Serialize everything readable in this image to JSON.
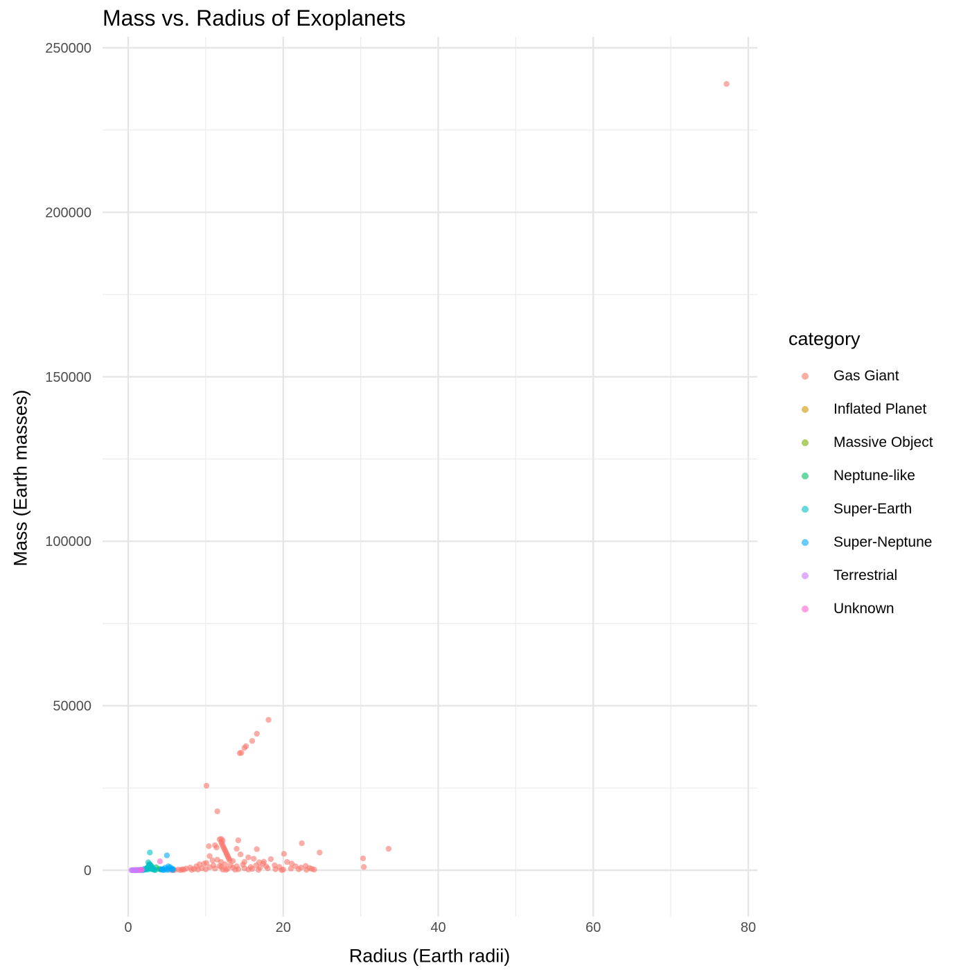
{
  "chart_data": {
    "type": "scatter",
    "title": "Mass vs. Radius of Exoplanets",
    "xlabel": "Radius (Earth radii)",
    "ylabel": "Mass (Earth masses)",
    "xlim": [
      -3.5,
      81
    ],
    "ylim": [
      -12000,
      250000
    ],
    "xticks": [
      0,
      20,
      40,
      60,
      80
    ],
    "yticks": [
      0,
      50000,
      100000,
      150000,
      200000,
      250000
    ],
    "grid": true,
    "legend_title": "category",
    "legend_position": "right",
    "categories": [
      {
        "name": "Gas Giant",
        "color": "#F8766D"
      },
      {
        "name": "Inflated Planet",
        "color": "#CD9600"
      },
      {
        "name": "Massive Object",
        "color": "#7CAE00"
      },
      {
        "name": "Neptune-like",
        "color": "#00BE67"
      },
      {
        "name": "Super-Earth",
        "color": "#00BFC4"
      },
      {
        "name": "Super-Neptune",
        "color": "#00A9FF"
      },
      {
        "name": "Terrestrial",
        "color": "#C77CFF"
      },
      {
        "name": "Unknown",
        "color": "#FF61CC"
      }
    ],
    "series": [
      {
        "name": "Gas Giant",
        "points": [
          [
            77.2,
            239000
          ],
          [
            18.1,
            45700
          ],
          [
            16.6,
            41500
          ],
          [
            16.0,
            39300
          ],
          [
            15.2,
            37700
          ],
          [
            15.0,
            37200
          ],
          [
            14.6,
            35700
          ],
          [
            14.4,
            35600
          ],
          [
            10.1,
            25700
          ],
          [
            11.5,
            17900
          ],
          [
            33.6,
            6500
          ],
          [
            30.3,
            3600
          ],
          [
            30.4,
            1000
          ],
          [
            24.7,
            5400
          ],
          [
            22.4,
            8200
          ],
          [
            20.1,
            5000
          ],
          [
            16.6,
            6400
          ],
          [
            14.2,
            9100
          ],
          [
            14.0,
            6500
          ],
          [
            10.4,
            7300
          ],
          [
            10.5,
            4300
          ],
          [
            10.1,
            2200
          ],
          [
            11.2,
            7600
          ],
          [
            11.4,
            6900
          ],
          [
            11.8,
            9400
          ],
          [
            12.0,
            9500
          ],
          [
            12.2,
            9000
          ],
          [
            12.0,
            8500
          ],
          [
            12.1,
            8000
          ],
          [
            12.2,
            7500
          ],
          [
            12.3,
            7000
          ],
          [
            12.4,
            6500
          ],
          [
            12.5,
            6000
          ],
          [
            12.6,
            5500
          ],
          [
            12.7,
            5000
          ],
          [
            12.8,
            4500
          ],
          [
            12.9,
            4000
          ],
          [
            13.0,
            3500
          ],
          [
            13.1,
            3000
          ],
          [
            12.0,
            2500
          ],
          [
            11.5,
            3200
          ],
          [
            10.9,
            3000
          ],
          [
            9.8,
            2000
          ],
          [
            9.2,
            1800
          ],
          [
            8.8,
            1200
          ],
          [
            8.0,
            800
          ],
          [
            7.5,
            500
          ],
          [
            7.0,
            300
          ],
          [
            6.5,
            200
          ],
          [
            6.0,
            100
          ],
          [
            13.5,
            2800
          ],
          [
            14.5,
            4800
          ],
          [
            15.0,
            2500
          ],
          [
            15.5,
            3900
          ],
          [
            16.2,
            3500
          ],
          [
            16.9,
            2400
          ],
          [
            17.4,
            2000
          ],
          [
            18.4,
            3400
          ],
          [
            18.9,
            1500
          ],
          [
            19.5,
            1000
          ],
          [
            20.5,
            2500
          ],
          [
            21.1,
            2000
          ],
          [
            21.6,
            1200
          ],
          [
            22.3,
            800
          ],
          [
            22.9,
            1300
          ],
          [
            23.4,
            700
          ],
          [
            23.7,
            400
          ],
          [
            17.8,
            1200
          ],
          [
            16.5,
            1500
          ],
          [
            15.8,
            1000
          ],
          [
            14.8,
            1700
          ],
          [
            14.0,
            1200
          ],
          [
            13.2,
            1500
          ],
          [
            12.5,
            1800
          ],
          [
            11.8,
            1300
          ],
          [
            11.0,
            1500
          ],
          [
            10.5,
            900
          ],
          [
            9.5,
            600
          ],
          [
            8.5,
            400
          ],
          [
            19.0,
            300
          ],
          [
            20.0,
            200
          ],
          [
            21.0,
            500
          ],
          [
            22.0,
            300
          ],
          [
            18.0,
            600
          ],
          [
            17.0,
            800
          ],
          [
            16.0,
            400
          ],
          [
            15.0,
            600
          ],
          [
            14.2,
            300
          ],
          [
            13.5,
            800
          ],
          [
            12.8,
            400
          ],
          [
            12.0,
            1000
          ],
          [
            11.2,
            500
          ],
          [
            10.0,
            300
          ],
          [
            9.0,
            200
          ],
          [
            8.2,
            100
          ],
          [
            7.2,
            150
          ],
          [
            6.8,
            50
          ],
          [
            5.8,
            30
          ],
          [
            5.5,
            60
          ],
          [
            12.2,
            200
          ],
          [
            12.6,
            100
          ],
          [
            13.8,
            150
          ],
          [
            15.5,
            200
          ],
          [
            16.8,
            100
          ],
          [
            19.8,
            50
          ],
          [
            23.0,
            100
          ],
          [
            24.0,
            200
          ],
          [
            17.5,
            2600
          ]
        ]
      },
      {
        "name": "Neptune-like",
        "points": [
          [
            2.8,
            1800
          ],
          [
            3.0,
            600
          ],
          [
            3.3,
            300
          ],
          [
            3.6,
            900
          ],
          [
            4.0,
            400
          ],
          [
            4.2,
            200
          ]
        ]
      },
      {
        "name": "Super-Earth",
        "points": [
          [
            2.8,
            5400
          ],
          [
            2.6,
            2400
          ],
          [
            2.7,
            1800
          ],
          [
            2.9,
            1500
          ],
          [
            3.0,
            1200
          ],
          [
            3.1,
            900
          ],
          [
            2.5,
            700
          ],
          [
            2.4,
            500
          ],
          [
            2.3,
            300
          ],
          [
            2.2,
            150
          ],
          [
            2.0,
            100
          ],
          [
            1.9,
            60
          ],
          [
            1.8,
            40
          ],
          [
            2.6,
            1000
          ],
          [
            2.7,
            600
          ],
          [
            2.9,
            400
          ],
          [
            3.2,
            200
          ],
          [
            3.4,
            100
          ],
          [
            3.5,
            50
          ],
          [
            2.1,
            400
          ],
          [
            2.45,
            800
          ],
          [
            2.75,
            1300
          ],
          [
            3.05,
            700
          ],
          [
            2.55,
            200
          ]
        ]
      },
      {
        "name": "Super-Neptune",
        "points": [
          [
            5.0,
            4500
          ],
          [
            4.8,
            800
          ],
          [
            4.5,
            400
          ],
          [
            4.3,
            250
          ],
          [
            5.2,
            1200
          ],
          [
            5.4,
            900
          ],
          [
            5.6,
            600
          ],
          [
            5.8,
            300
          ],
          [
            5.1,
            100
          ],
          [
            4.6,
            50
          ],
          [
            4.4,
            150
          ],
          [
            5.7,
            80
          ],
          [
            5.3,
            500
          ],
          [
            4.9,
            200
          ]
        ]
      },
      {
        "name": "Terrestrial",
        "points": [
          [
            0.4,
            10
          ],
          [
            0.5,
            20
          ],
          [
            0.6,
            30
          ],
          [
            0.7,
            15
          ],
          [
            0.8,
            40
          ],
          [
            0.9,
            25
          ],
          [
            1.0,
            50
          ],
          [
            1.1,
            30
          ],
          [
            1.2,
            60
          ],
          [
            1.3,
            40
          ],
          [
            1.4,
            80
          ],
          [
            1.5,
            50
          ],
          [
            1.6,
            100
          ],
          [
            1.7,
            70
          ],
          [
            1.8,
            120
          ],
          [
            1.55,
            40
          ],
          [
            1.25,
            20
          ],
          [
            0.95,
            10
          ]
        ]
      },
      {
        "name": "Unknown",
        "points": [
          [
            4.1,
            2700
          ],
          [
            1.7,
            150
          ]
        ]
      }
    ]
  }
}
